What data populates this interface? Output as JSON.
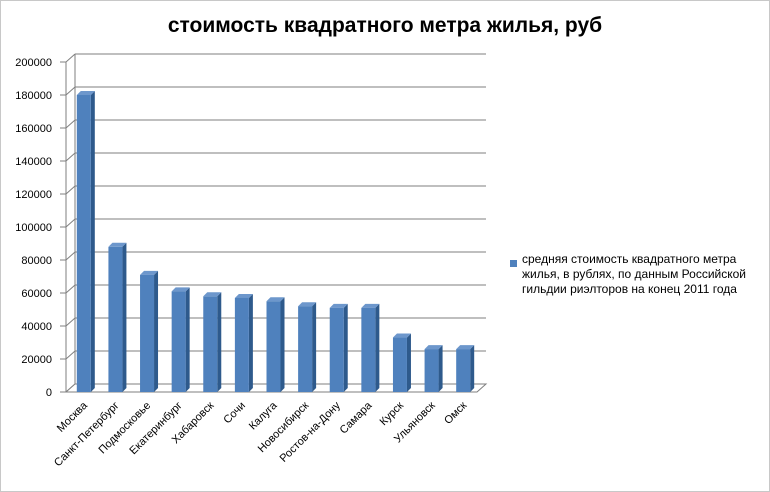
{
  "chart_data": {
    "type": "bar",
    "title": "стоимость квадратного метра жилья, руб",
    "categories": [
      "Москва",
      "Санкт-Петербург",
      "Подмосковье",
      "Екатеринбург",
      "Хабаровск",
      "Сочи",
      "Калуга",
      "Новосибирск",
      "Ростов-на-Дону",
      "Самара",
      "Курск",
      "Ульяновск",
      "Омск"
    ],
    "series": [
      {
        "name": "средняя стоимость квадратного метра жилья, в рублях, по данным Российской гильдии риэлторов на конец 2011 года",
        "color": "#4f81bd",
        "values": [
          180000,
          88000,
          71000,
          61000,
          58000,
          57000,
          55000,
          52000,
          51000,
          51000,
          33000,
          26000,
          26000
        ]
      }
    ],
    "y_ticks": [
      "0",
      "20000",
      "40000",
      "60000",
      "80000",
      "100000",
      "120000",
      "140000",
      "160000",
      "180000",
      "200000"
    ],
    "ylim": [
      0,
      200000
    ],
    "grid": true,
    "legend_position": "right",
    "style": "3d-columns"
  }
}
